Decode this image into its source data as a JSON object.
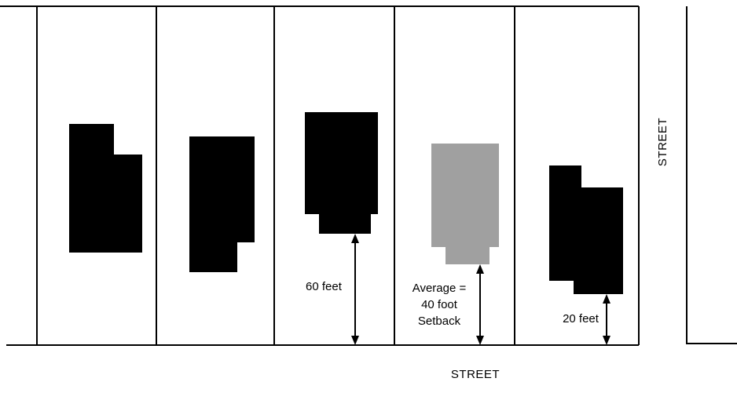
{
  "colors": {
    "line": "#000000",
    "building": "#000000",
    "average_building": "#a0a0a0",
    "background": "#ffffff"
  },
  "labels": {
    "street_bottom": "STREET",
    "street_right": "STREET",
    "setback_60": "60 feet",
    "average_line1": "Average =",
    "average_line2": "40 foot",
    "average_line3": "Setback",
    "setback_20": "20 feet"
  }
}
